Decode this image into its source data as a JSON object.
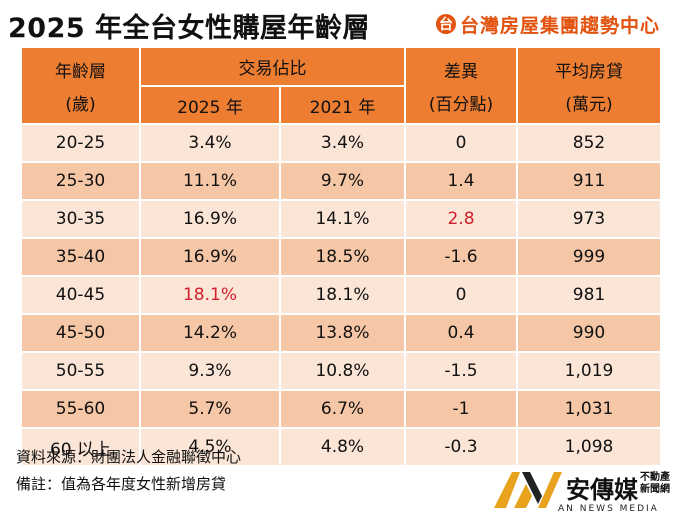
{
  "title": "2025 年全台女性購屋年齡層",
  "brand": {
    "icon": "台",
    "name": "台灣房屋集團趨勢中心"
  },
  "header": {
    "age_line1": "年齡層",
    "age_line2": "(歲)",
    "share_label": "交易佔比",
    "year_2025": "2025 年",
    "year_2021": "2021 年",
    "diff_line1": "差異",
    "diff_line2": "(百分點)",
    "loan_line1": "平均房貸",
    "loan_line2": "(萬元)"
  },
  "rows": [
    {
      "age": "20-25",
      "y2025": "3.4%",
      "y2021": "3.4%",
      "diff": "0",
      "loan": "852"
    },
    {
      "age": "25-30",
      "y2025": "11.1%",
      "y2021": "9.7%",
      "diff": "1.4",
      "loan": "911"
    },
    {
      "age": "30-35",
      "y2025": "16.9%",
      "y2021": "14.1%",
      "diff": "2.8",
      "loan": "973"
    },
    {
      "age": "35-40",
      "y2025": "16.9%",
      "y2021": "18.5%",
      "diff": "-1.6",
      "loan": "999"
    },
    {
      "age": "40-45",
      "y2025": "18.1%",
      "y2021": "18.1%",
      "diff": "0",
      "loan": "981"
    },
    {
      "age": "45-50",
      "y2025": "14.2%",
      "y2021": "13.8%",
      "diff": "0.4",
      "loan": "990"
    },
    {
      "age": "50-55",
      "y2025": "9.3%",
      "y2021": "10.8%",
      "diff": "-1.5",
      "loan": "1,019"
    },
    {
      "age": "55-60",
      "y2025": "5.7%",
      "y2021": "6.7%",
      "diff": "-1",
      "loan": "1,031"
    },
    {
      "age": "60 以上",
      "y2025": "4.5%",
      "y2021": "4.8%",
      "diff": "-0.3",
      "loan": "1,098"
    }
  ],
  "highlight_color": "#d0202d",
  "footer": {
    "source": "資料來源：財團法人金融聯徵中心",
    "note": "備註：值為各年度女性新增房貸"
  },
  "logo": {
    "name": "安傳媒",
    "tag1": "不動產",
    "tag2": "新聞網",
    "sub": "AN NEWS MEDIA"
  }
}
